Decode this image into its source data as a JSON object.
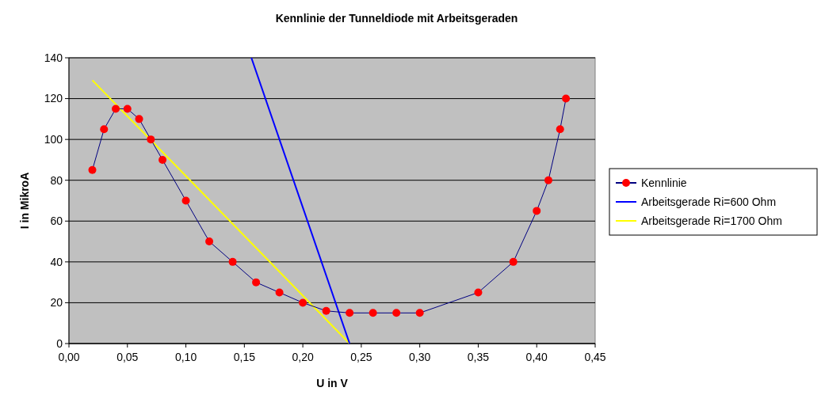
{
  "chart_data": {
    "type": "line",
    "title": "Kennlinie der Tunneldiode mit Arbeitsgeraden",
    "xlabel": "U in V",
    "ylabel": "I in MikroA",
    "xlim": [
      0,
      0.45
    ],
    "xticks": [
      {
        "value": 0,
        "label": "0,00"
      },
      {
        "value": 0.05,
        "label": "0,05"
      },
      {
        "value": 0.1,
        "label": "0,10"
      },
      {
        "value": 0.15,
        "label": "0,15"
      },
      {
        "value": 0.2,
        "label": "0,20"
      },
      {
        "value": 0.25,
        "label": "0,25"
      },
      {
        "value": 0.3,
        "label": "0,30"
      },
      {
        "value": 0.35,
        "label": "0,35"
      },
      {
        "value": 0.4,
        "label": "0,40"
      },
      {
        "value": 0.45,
        "label": "0,45"
      }
    ],
    "ylim": [
      0,
      140
    ],
    "yticks": [
      0,
      20,
      40,
      60,
      80,
      100,
      120,
      140
    ],
    "grid": "y",
    "legend": "right",
    "series": [
      {
        "name": "Kennlinie",
        "color": "#000080",
        "marker": "circle",
        "colors": [
          "#ff0000",
          "#ff0000",
          "#ff0000",
          "#ff0000",
          "#ff0000",
          "#ff0000",
          "#ff0000",
          "#ff0000",
          "#ff0000",
          "#ff0000",
          "#ff0000",
          "#ff0000",
          "#ff0000",
          "#ff0000",
          "#ff0000",
          "#ff0000",
          "#ff0000",
          "#ff0000",
          "#ff0000",
          "#ff0000",
          "#ff0000",
          "#ff0000",
          "#ff0000",
          "#ff0000"
        ],
        "x": [
          0.02,
          0.03,
          0.04,
          0.05,
          0.06,
          0.07,
          0.08,
          0.1,
          0.12,
          0.14,
          0.16,
          0.18,
          0.2,
          0.22,
          0.24,
          0.26,
          0.28,
          0.3,
          0.35,
          0.38,
          0.4,
          0.41,
          0.42,
          0.425
        ],
        "values": [
          85,
          105,
          115,
          115,
          110,
          100,
          90,
          70,
          50,
          40,
          30,
          25,
          20,
          16,
          15,
          15,
          15,
          15,
          25,
          40,
          65,
          80,
          105,
          120
        ]
      },
      {
        "name": "Arbeitsgerade Ri=600 Ohm",
        "color": "#0000ff",
        "marker": "none",
        "x": [
          0.156,
          0.24
        ],
        "values": [
          140,
          0
        ]
      },
      {
        "name": "Arbeitsgerade Ri=1700 Ohm",
        "color": "#ffff00",
        "marker": "none",
        "x": [
          0.02,
          0.24
        ],
        "values": [
          129,
          0
        ]
      }
    ]
  }
}
